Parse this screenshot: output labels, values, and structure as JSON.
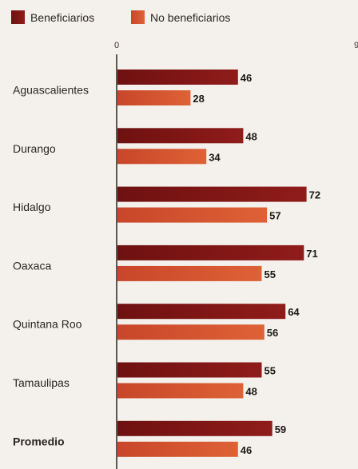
{
  "chart_data": {
    "type": "bar",
    "orientation": "horizontal",
    "categories": [
      "Aguascalientes",
      "Durango",
      "Hidalgo",
      "Oaxaca",
      "Quintana Roo",
      "Tamaulipas",
      "Promedio"
    ],
    "series": [
      {
        "name": "Beneficiarios",
        "values": [
          46,
          48,
          72,
          71,
          64,
          55,
          59
        ],
        "color": "#8b1a1a"
      },
      {
        "name": "No beneficiarios",
        "values": [
          28,
          34,
          57,
          55,
          56,
          48,
          46
        ],
        "color": "#d2532e"
      }
    ],
    "xlim": [
      0,
      90
    ],
    "ticks": [
      "0",
      "90"
    ],
    "legend_position": "top-left",
    "grid": false,
    "emphasized_category": "Promedio"
  }
}
